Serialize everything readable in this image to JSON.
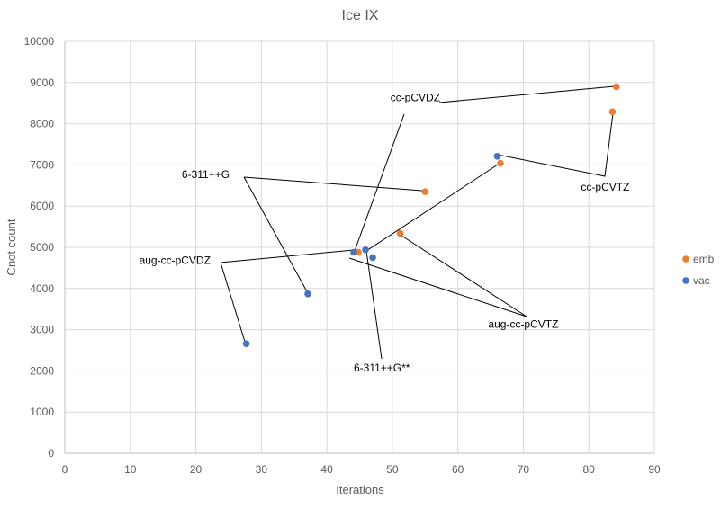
{
  "chart_data": {
    "type": "scatter",
    "title": "Ice IX",
    "xlabel": "Iterations",
    "ylabel": "Cnot count",
    "xlim": [
      0,
      90
    ],
    "ylim": [
      0,
      10000
    ],
    "xticks": [
      0,
      10,
      20,
      30,
      40,
      50,
      60,
      70,
      80,
      90
    ],
    "yticks": [
      0,
      1000,
      2000,
      3000,
      4000,
      5000,
      6000,
      7000,
      8000,
      9000,
      10000
    ],
    "grid": true,
    "legend_position": "right",
    "series": [
      {
        "name": "emb",
        "color": "#ed7d31",
        "points": [
          {
            "x": 84.2,
            "y": 8900
          },
          {
            "x": 83.6,
            "y": 8290
          },
          {
            "x": 66.5,
            "y": 7040
          },
          {
            "x": 55.0,
            "y": 6350
          },
          {
            "x": 51.2,
            "y": 5340
          },
          {
            "x": 44.8,
            "y": 4880
          }
        ]
      },
      {
        "name": "vac",
        "color": "#4472c4",
        "points": [
          {
            "x": 66.0,
            "y": 7210
          },
          {
            "x": 45.9,
            "y": 4940
          },
          {
            "x": 44.1,
            "y": 4880
          },
          {
            "x": 47.0,
            "y": 4750
          },
          {
            "x": 37.1,
            "y": 3870
          },
          {
            "x": 27.7,
            "y": 2660
          }
        ]
      }
    ],
    "annotations": [
      {
        "text": "cc-pCVDZ",
        "x": 53.5,
        "y": 8550
      },
      {
        "text": "6-311++G",
        "x": 21.5,
        "y": 6680
      },
      {
        "text": "cc-pCVTZ",
        "x": 82.5,
        "y": 6380
      },
      {
        "text": "aug-cc-pCVDZ",
        "x": 16.8,
        "y": 4600
      },
      {
        "text": "aug-cc-pCVTZ",
        "x": 70.0,
        "y": 3050
      },
      {
        "text": "6-311++G**",
        "x": 48.4,
        "y": 1990
      }
    ]
  }
}
